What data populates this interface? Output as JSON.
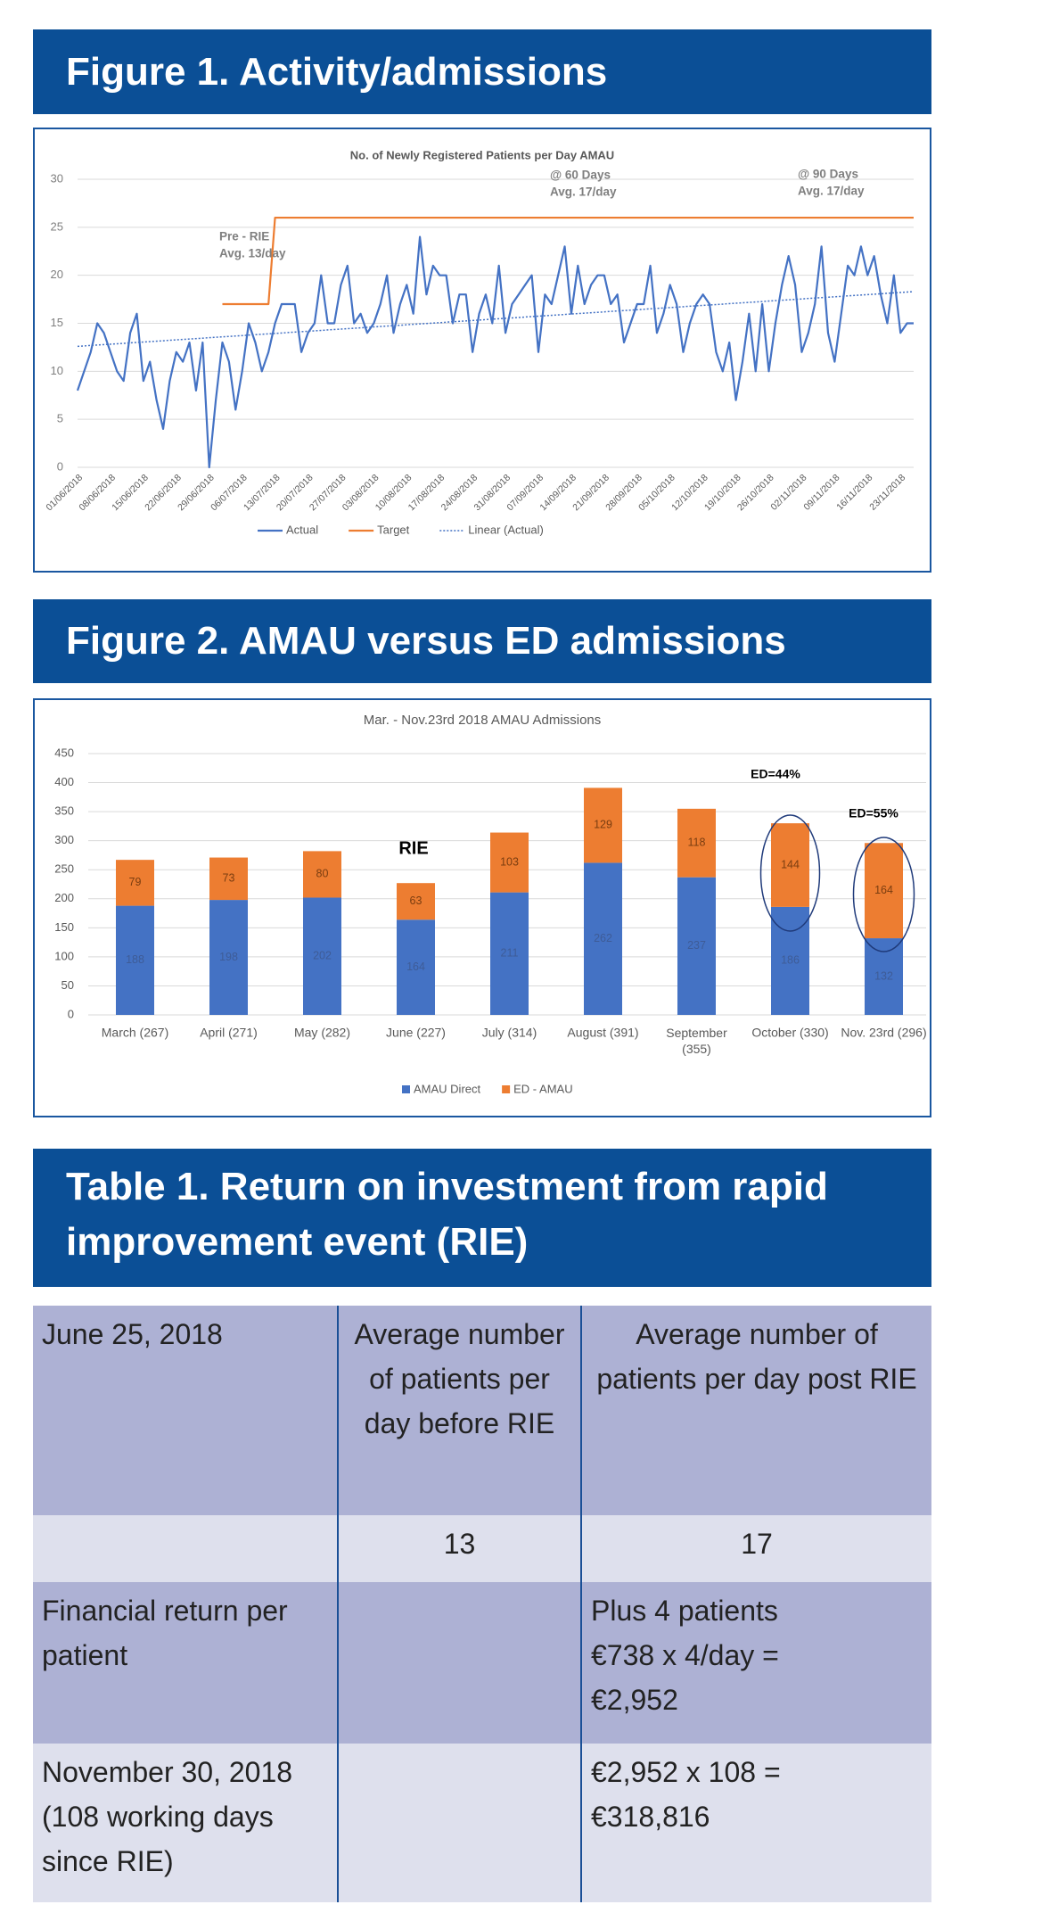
{
  "headings": [
    "Figure 1. Activity/admissions",
    "Figure 2. AMAU versus ED admissions",
    "Table 1. Return on investment from rapid improvement event (RIE)"
  ],
  "chart_data": [
    {
      "type": "line",
      "title": "No. of Newly Registered Patients per Day AMAU",
      "categories": [
        "01/06/2018",
        null,
        null,
        null,
        null,
        "08/06/2018",
        null,
        null,
        null,
        null,
        "15/06/2018",
        null,
        null,
        null,
        null,
        "22/06/2018",
        null,
        null,
        null,
        null,
        "29/06/2018",
        null,
        null,
        null,
        null,
        "06/07/2018",
        null,
        null,
        null,
        null,
        "13/07/2018",
        null,
        null,
        null,
        null,
        "20/07/2018",
        null,
        null,
        null,
        null,
        "27/07/2018",
        null,
        null,
        null,
        null,
        "03/08/2018",
        null,
        null,
        null,
        null,
        "10/08/2018",
        null,
        null,
        null,
        null,
        "17/08/2018",
        null,
        null,
        null,
        null,
        "24/08/2018",
        null,
        null,
        null,
        null,
        "31/08/2018",
        null,
        null,
        null,
        null,
        "07/09/2018",
        null,
        null,
        null,
        null,
        "14/09/2018",
        null,
        null,
        null,
        null,
        "21/09/2018",
        null,
        null,
        null,
        null,
        "28/09/2018",
        null,
        null,
        null,
        null,
        "05/10/2018",
        null,
        null,
        null,
        null,
        "12/10/2018",
        null,
        null,
        null,
        null,
        "19/10/2018",
        null,
        null,
        null,
        null,
        "26/10/2018",
        null,
        null,
        null,
        null,
        "02/11/2018",
        null,
        null,
        null,
        null,
        "09/11/2018",
        null,
        null,
        null,
        null,
        "16/11/2018",
        null,
        null,
        null,
        null,
        "23/11/2018",
        null,
        null
      ],
      "series": [
        {
          "name": "Actual",
          "color": "#4472c4",
          "values": [
            8,
            10,
            12,
            15,
            14,
            12,
            10,
            9,
            14,
            16,
            9,
            11,
            7,
            4,
            9,
            12,
            11,
            13,
            8,
            13,
            0,
            7,
            13,
            11,
            6,
            10,
            15,
            13,
            10,
            12,
            15,
            17,
            17,
            17,
            12,
            14,
            15,
            20,
            15,
            15,
            19,
            21,
            15,
            16,
            14,
            15,
            17,
            20,
            14,
            17,
            19,
            16,
            24,
            18,
            21,
            20,
            20,
            15,
            18,
            18,
            12,
            16,
            18,
            15,
            21,
            14,
            17,
            18,
            19,
            20,
            12,
            18,
            17,
            20,
            23,
            16,
            21,
            17,
            19,
            20,
            20,
            17,
            18,
            13,
            15,
            17,
            17,
            21,
            14,
            16,
            19,
            17,
            12,
            15,
            17,
            18,
            17,
            12,
            10,
            13,
            7,
            11,
            16,
            10,
            17,
            10,
            15,
            19,
            22,
            19,
            12,
            14,
            17,
            23,
            14,
            11,
            16,
            21,
            20,
            23,
            20,
            22,
            18,
            15,
            20,
            14,
            15,
            15
          ]
        },
        {
          "name": "Target",
          "color": "#ed7d31",
          "values": [
            null,
            null,
            null,
            null,
            null,
            null,
            null,
            null,
            null,
            null,
            null,
            null,
            null,
            null,
            null,
            null,
            null,
            null,
            null,
            null,
            null,
            null,
            17,
            17,
            17,
            17,
            17,
            17,
            17,
            17,
            26,
            26,
            26,
            26,
            26,
            26,
            26,
            26,
            26,
            26,
            26,
            26,
            26,
            26,
            26,
            26,
            26,
            26,
            26,
            26,
            26,
            26,
            26,
            26,
            26,
            26,
            26,
            26,
            26,
            26,
            26,
            26,
            26,
            26,
            26,
            26,
            26,
            26,
            26,
            26,
            26,
            26,
            26,
            26,
            26,
            26,
            26,
            26,
            26,
            26,
            26,
            26,
            26,
            26,
            26,
            26,
            26,
            26,
            26,
            26,
            26,
            26,
            26,
            26,
            26,
            26,
            26,
            26,
            26,
            26,
            26,
            26,
            26,
            26,
            26,
            26,
            26,
            26,
            26,
            26,
            26,
            26,
            26,
            26,
            26,
            26,
            26,
            26,
            26,
            26,
            26,
            26,
            26,
            26,
            26,
            26,
            26,
            26
          ]
        }
      ],
      "trendline": {
        "name": "Linear (Actual)",
        "color": "#4472c4",
        "values": [
          12.6,
          18.3
        ]
      },
      "ylim": [
        0,
        30
      ],
      "yticks": [
        0,
        5,
        10,
        15,
        20,
        25,
        30
      ],
      "grid": true,
      "legend": "bottom",
      "annotations": [
        {
          "lines": [
            "Pre - RIE",
            "Avg. 13/day"
          ]
        },
        {
          "lines": [
            "@ 60 Days",
            "Avg. 17/day"
          ]
        },
        {
          "lines": [
            "@ 90 Days",
            "Avg. 17/day"
          ]
        }
      ]
    },
    {
      "type": "stacked_bar",
      "title": "Mar. - Nov.23rd 2018 AMAU Admissions",
      "categories": [
        "March (267)",
        "April (271)",
        "May (282)",
        "June (227)",
        "July (314)",
        "August (391)",
        "September (355)",
        "October (330)",
        "Nov. 23rd (296)"
      ],
      "series": [
        {
          "name": "AMAU Direct",
          "color": "#4472c4",
          "values": [
            188,
            198,
            202,
            164,
            211,
            262,
            237,
            186,
            132
          ]
        },
        {
          "name": "ED - AMAU",
          "color": "#ed7d31",
          "values": [
            79,
            73,
            80,
            63,
            103,
            129,
            118,
            144,
            164
          ]
        }
      ],
      "ylim": [
        0,
        450
      ],
      "yticks": [
        0,
        50,
        100,
        150,
        200,
        250,
        300,
        350,
        400,
        450
      ],
      "grid": true,
      "legend": "bottom",
      "annotations": [
        "RIE",
        "ED=44%",
        "ED=55%"
      ]
    }
  ],
  "table": {
    "rows": [
      [
        "June 25, 2018",
        "Average number of patients per day before RIE",
        "Average number of patients per day post RIE"
      ],
      [
        null,
        13,
        17
      ],
      [
        "Financial return per patient",
        null,
        [
          "Plus 4 patients",
          "€738 x 4/day =",
          "€2,952"
        ]
      ],
      [
        "November 30, 2018 (108 working days since RIE)",
        null,
        [
          "€2,952 x 108 =",
          "€318,816"
        ]
      ]
    ]
  }
}
